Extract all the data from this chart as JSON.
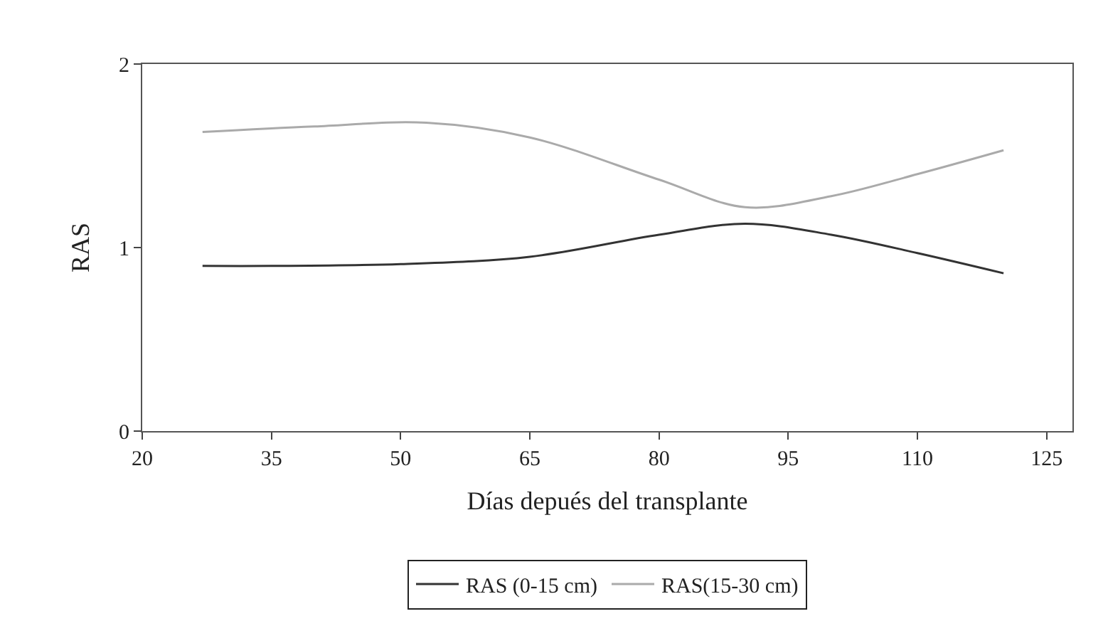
{
  "chart_data": {
    "type": "line",
    "xlabel": "Días depués del transplante",
    "ylabel": "RAS",
    "xlim": [
      20,
      128
    ],
    "xticks": [
      20,
      35,
      50,
      65,
      80,
      95,
      110,
      125
    ],
    "ylim": [
      0,
      2
    ],
    "yticks": [
      0,
      1,
      2
    ],
    "legend": "bottom",
    "marker": "none",
    "line_style": "solid",
    "series": [
      {
        "name": "RAS (0-15 cm)",
        "color": "#333333",
        "x": [
          27,
          35,
          50,
          65,
          80,
          90,
          100,
          110,
          120
        ],
        "values": [
          0.9,
          0.9,
          0.91,
          0.95,
          1.07,
          1.13,
          1.07,
          0.97,
          0.86
        ]
      },
      {
        "name": "RAS(15-30 cm)",
        "color": "#aaaaaa",
        "x": [
          27,
          40,
          53,
          65,
          80,
          90,
          100,
          110,
          120
        ],
        "values": [
          1.63,
          1.66,
          1.68,
          1.6,
          1.37,
          1.22,
          1.28,
          1.4,
          1.53
        ]
      }
    ]
  }
}
